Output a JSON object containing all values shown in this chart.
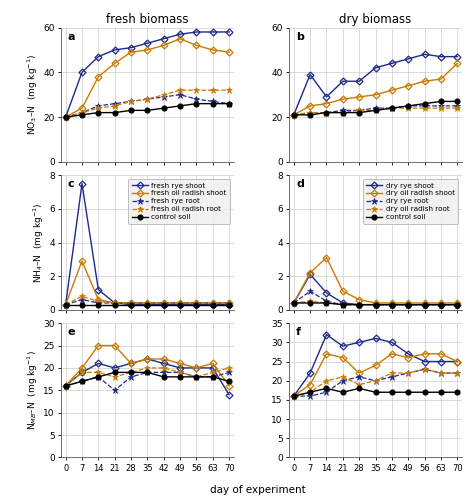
{
  "days": [
    0,
    7,
    14,
    21,
    28,
    35,
    42,
    49,
    56,
    63,
    70
  ],
  "col_titles": [
    "fresh biomass",
    "dry biomass"
  ],
  "panel_labels": [
    "a",
    "b",
    "c",
    "d",
    "e",
    "f"
  ],
  "xlabel": "day of experiment",
  "legend_left": [
    "fresh rye shoot",
    "fresh oil radish shoot",
    "fresh rye root",
    "fresh oil radish root",
    "control soil"
  ],
  "legend_right": [
    "dry rye shoot",
    "dry oil radish shoot",
    "dry rye root",
    "dry oil radish root",
    "control soil"
  ],
  "NO3_fresh": {
    "rye_shoot": [
      20,
      40,
      47,
      50,
      51,
      53,
      55,
      57,
      58,
      58,
      58
    ],
    "radish_shoot": [
      20,
      24,
      38,
      44,
      49,
      50,
      52,
      55,
      52,
      50,
      49
    ],
    "rye_root": [
      20,
      22,
      25,
      26,
      27,
      28,
      29,
      30,
      28,
      27,
      26
    ],
    "radish_root": [
      20,
      22,
      24,
      25,
      27,
      28,
      30,
      32,
      32,
      32,
      32
    ],
    "control": [
      20,
      21,
      22,
      22,
      23,
      23,
      24,
      25,
      26,
      26,
      26
    ]
  },
  "NO3_dry": {
    "rye_shoot": [
      21,
      39,
      29,
      36,
      36,
      42,
      44,
      46,
      48,
      47,
      47
    ],
    "radish_shoot": [
      21,
      25,
      26,
      28,
      29,
      30,
      32,
      34,
      36,
      37,
      44
    ],
    "rye_root": [
      21,
      22,
      22,
      23,
      23,
      24,
      24,
      25,
      25,
      25,
      25
    ],
    "radish_root": [
      21,
      22,
      22,
      22,
      23,
      23,
      24,
      24,
      24,
      24,
      24
    ],
    "control": [
      21,
      21,
      22,
      22,
      22,
      23,
      24,
      25,
      26,
      27,
      27
    ]
  },
  "NH4_fresh": {
    "rye_shoot": [
      0.3,
      7.5,
      1.2,
      0.4,
      0.3,
      0.3,
      0.3,
      0.3,
      0.3,
      0.3,
      0.3
    ],
    "radish_shoot": [
      0.3,
      2.9,
      0.6,
      0.4,
      0.4,
      0.4,
      0.4,
      0.4,
      0.4,
      0.4,
      0.4
    ],
    "rye_root": [
      0.3,
      0.6,
      0.4,
      0.4,
      0.4,
      0.4,
      0.4,
      0.4,
      0.4,
      0.4,
      0.4
    ],
    "radish_root": [
      0.3,
      0.8,
      0.5,
      0.4,
      0.4,
      0.4,
      0.4,
      0.4,
      0.4,
      0.4,
      0.4
    ],
    "control": [
      0.3,
      0.3,
      0.3,
      0.3,
      0.3,
      0.3,
      0.3,
      0.3,
      0.3,
      0.3,
      0.3
    ]
  },
  "NH4_dry": {
    "rye_shoot": [
      0.4,
      2.1,
      1.0,
      0.4,
      0.3,
      0.3,
      0.3,
      0.3,
      0.3,
      0.3,
      0.3
    ],
    "radish_shoot": [
      0.4,
      2.2,
      3.1,
      1.1,
      0.6,
      0.4,
      0.4,
      0.4,
      0.4,
      0.4,
      0.4
    ],
    "rye_root": [
      0.4,
      1.1,
      0.5,
      0.3,
      0.3,
      0.3,
      0.3,
      0.3,
      0.3,
      0.3,
      0.3
    ],
    "radish_root": [
      0.4,
      0.5,
      0.4,
      0.3,
      0.3,
      0.3,
      0.3,
      0.3,
      0.3,
      0.3,
      0.3
    ],
    "control": [
      0.4,
      0.4,
      0.4,
      0.3,
      0.3,
      0.3,
      0.3,
      0.3,
      0.3,
      0.3,
      0.3
    ]
  },
  "NMB_fresh": {
    "rye_shoot": [
      16,
      19,
      21,
      20,
      21,
      22,
      21,
      20,
      20,
      20,
      14
    ],
    "radish_shoot": [
      16,
      20,
      25,
      25,
      21,
      22,
      22,
      21,
      20,
      21,
      16
    ],
    "rye_root": [
      16,
      17,
      18,
      15,
      18,
      19,
      19,
      19,
      18,
      18,
      19
    ],
    "radish_root": [
      16,
      19,
      19,
      18,
      19,
      20,
      20,
      19,
      18,
      19,
      20
    ],
    "control": [
      16,
      17,
      18,
      19,
      19,
      19,
      18,
      18,
      18,
      18,
      17
    ]
  },
  "NMB_dry": {
    "rye_shoot": [
      16,
      22,
      32,
      29,
      30,
      31,
      30,
      27,
      25,
      25,
      25
    ],
    "radish_shoot": [
      16,
      19,
      27,
      26,
      22,
      24,
      27,
      26,
      27,
      27,
      25
    ],
    "rye_root": [
      16,
      16,
      17,
      20,
      21,
      20,
      21,
      22,
      23,
      22,
      22
    ],
    "radish_root": [
      16,
      17,
      20,
      21,
      19,
      20,
      22,
      22,
      23,
      22,
      22
    ],
    "control": [
      16,
      17,
      18,
      17,
      18,
      17,
      17,
      17,
      17,
      17,
      17
    ]
  },
  "c_rye": "#1f2a8a",
  "c_rad": "#c97a00",
  "c_ctrl": "#000000",
  "xticks": [
    0,
    7,
    14,
    21,
    28,
    35,
    42,
    49,
    56,
    63,
    70
  ]
}
